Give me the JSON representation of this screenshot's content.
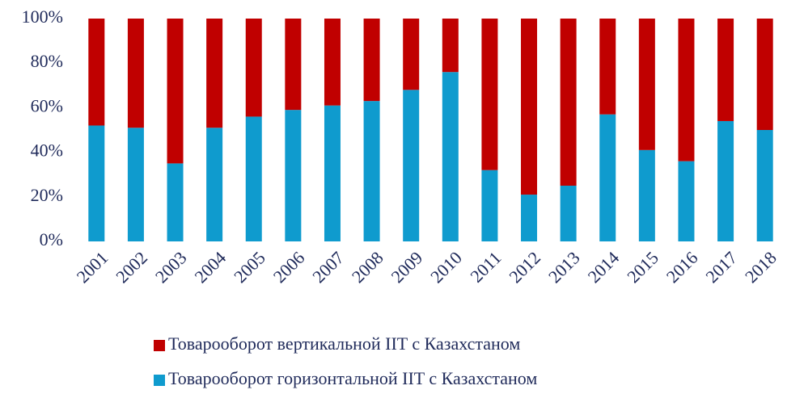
{
  "chart_data": {
    "type": "stacked_bar",
    "categories": [
      "2001",
      "2002",
      "2003",
      "2004",
      "2005",
      "2006",
      "2007",
      "2008",
      "2009",
      "2010",
      "2011",
      "2012",
      "2013",
      "2014",
      "2015",
      "2016",
      "2017",
      "2018"
    ],
    "series": [
      {
        "name": "Товарооборот горизонтальной IIT с Казахстаном",
        "color": "#0f9bce",
        "values": [
          52,
          51,
          35,
          51,
          56,
          59,
          61,
          63,
          68,
          76,
          32,
          21,
          25,
          57,
          41,
          36,
          54,
          50
        ]
      },
      {
        "name": "Товарооборот вертикальной IIT с Казахстаном",
        "color": "#c00000",
        "values": [
          48,
          49,
          65,
          49,
          44,
          41,
          39,
          37,
          32,
          24,
          68,
          79,
          75,
          43,
          59,
          64,
          46,
          50
        ]
      }
    ],
    "ylim": [
      0,
      100
    ],
    "yticks": [
      {
        "value": 0,
        "label": "0%"
      },
      {
        "value": 20,
        "label": "20%"
      },
      {
        "value": 40,
        "label": "40%"
      },
      {
        "value": 60,
        "label": "60%"
      },
      {
        "value": 80,
        "label": "80%"
      },
      {
        "value": 100,
        "label": "100%"
      }
    ]
  }
}
